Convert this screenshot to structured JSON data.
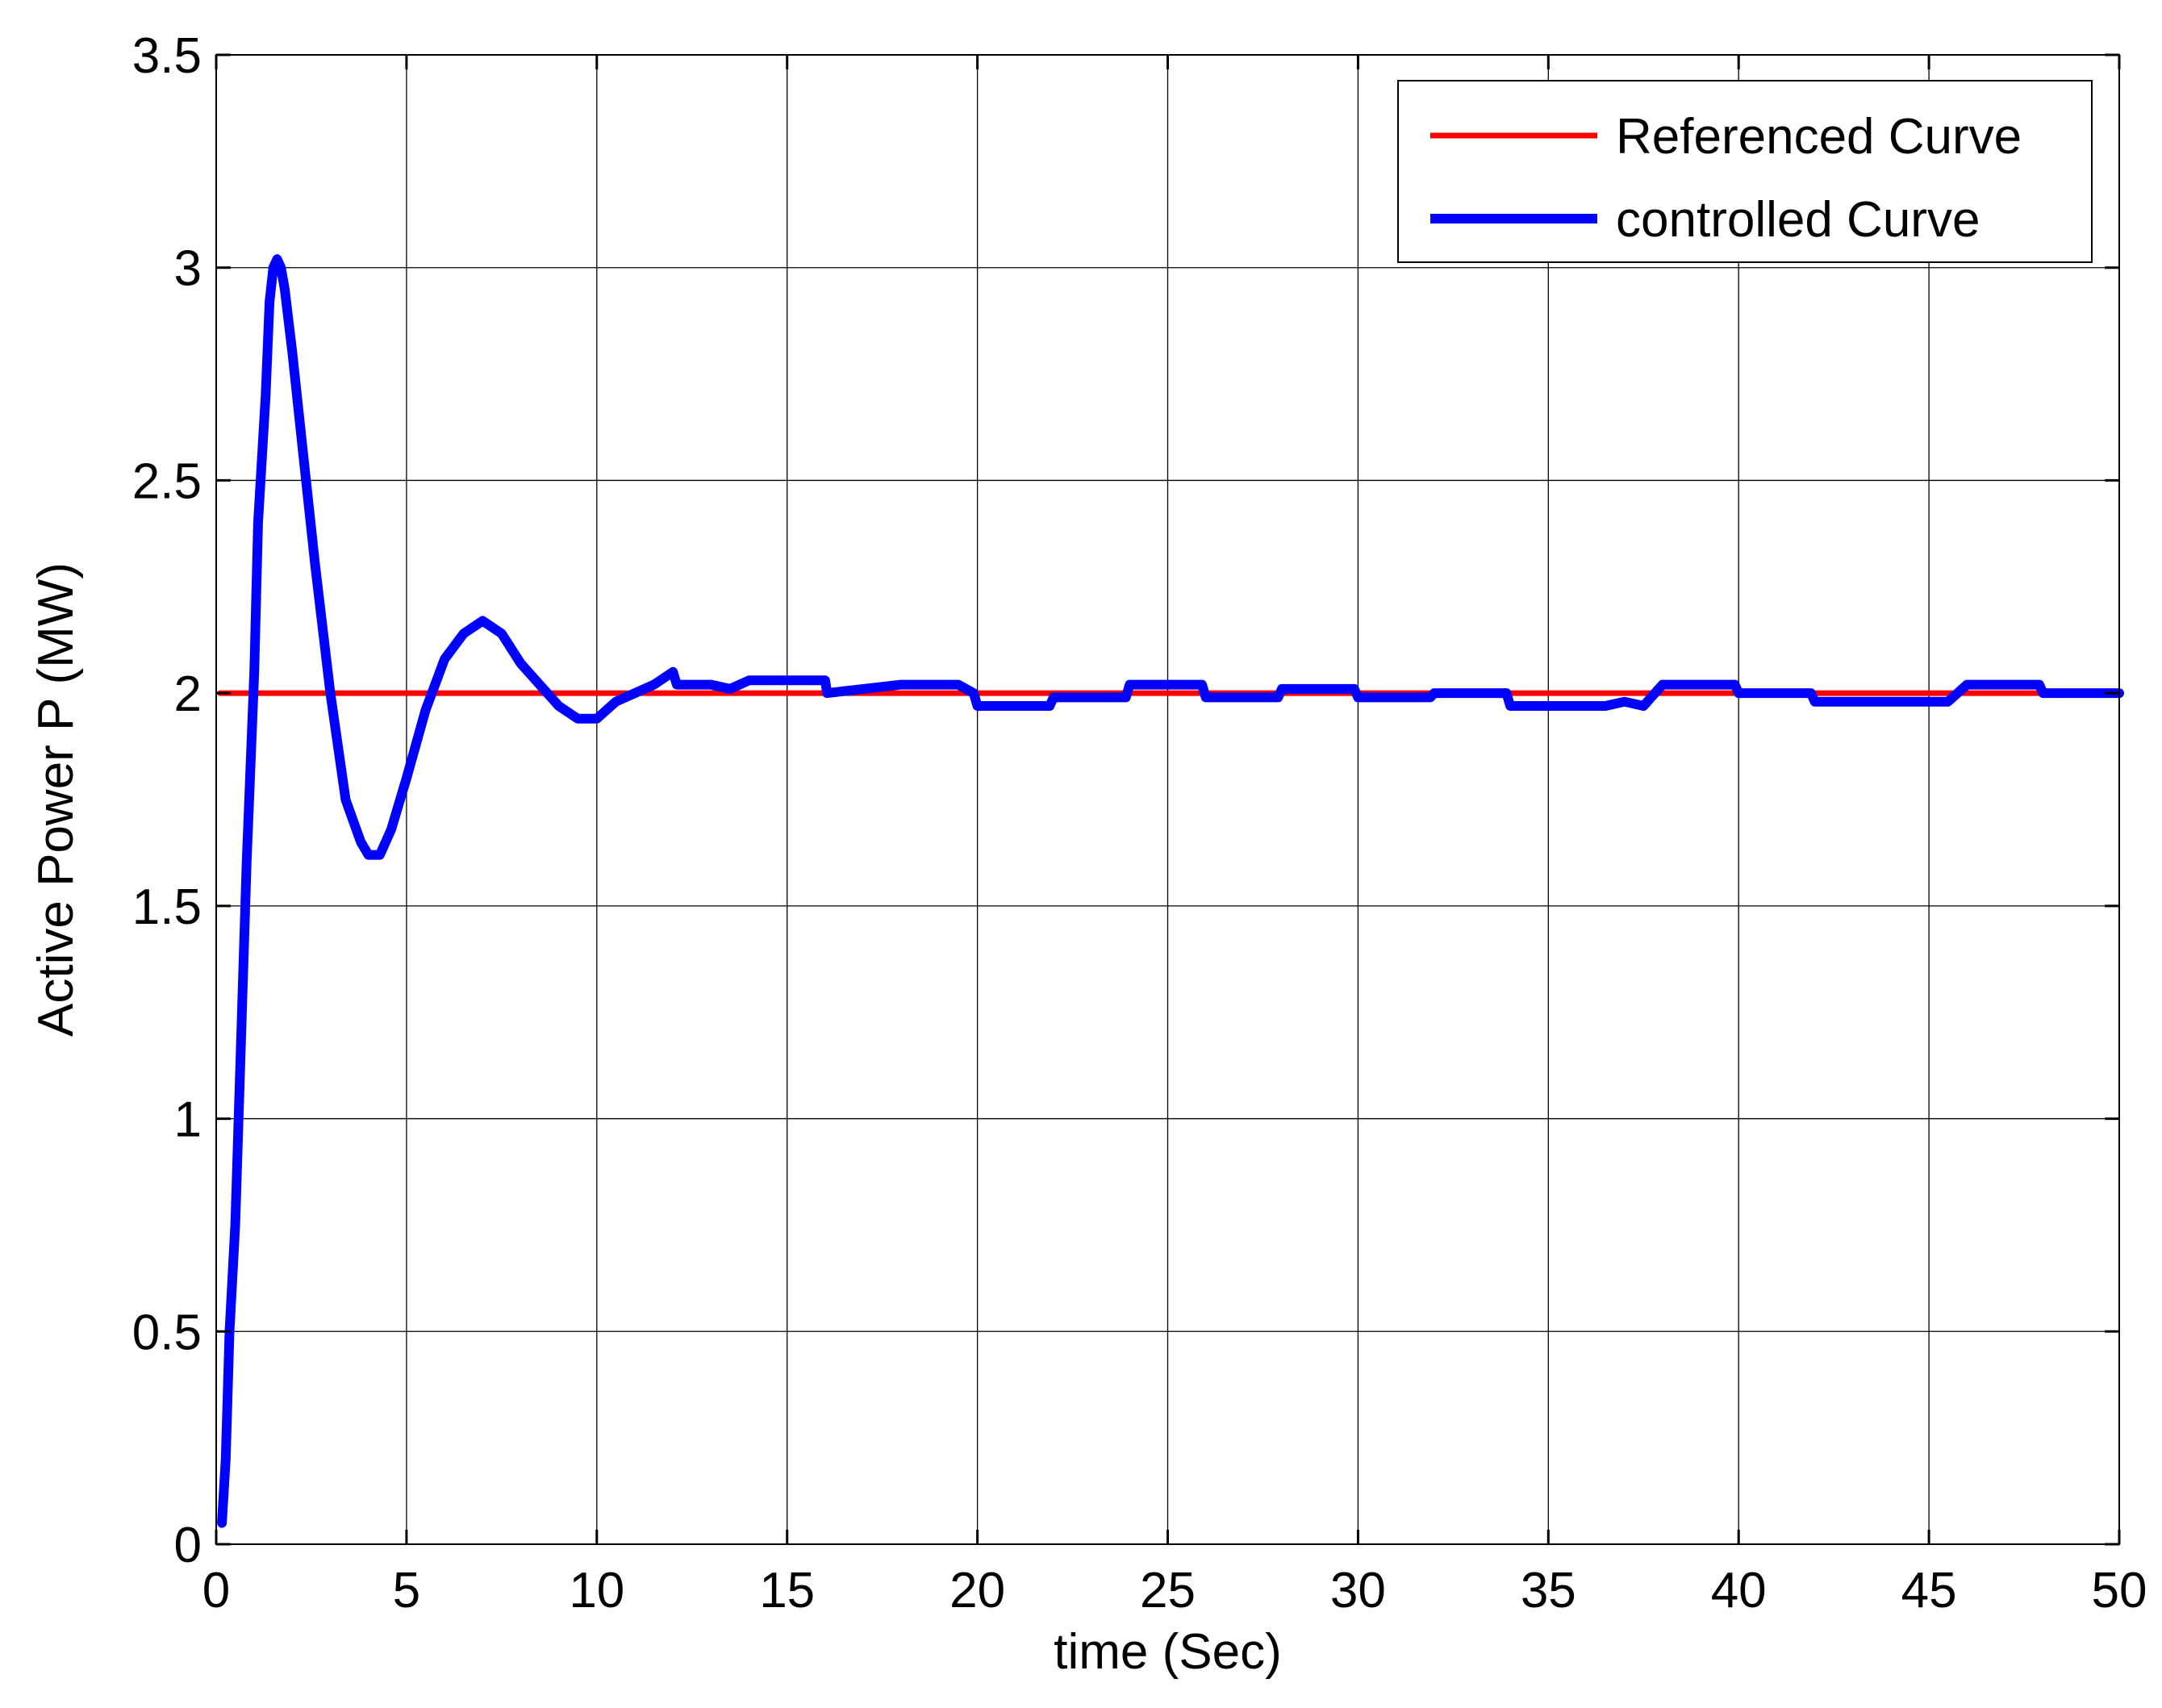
{
  "chart_data": {
    "type": "line",
    "xlabel": "time (Sec)",
    "ylabel": "Active Power P (MW)",
    "xlim": [
      0,
      50
    ],
    "ylim": [
      0,
      3.5
    ],
    "x_ticks": [
      0,
      5,
      10,
      15,
      20,
      25,
      30,
      35,
      40,
      45,
      50
    ],
    "y_ticks": [
      0,
      0.5,
      1,
      1.5,
      2,
      2.5,
      3,
      3.5
    ],
    "x_tick_labels": [
      "0",
      "5",
      "10",
      "15",
      "20",
      "25",
      "30",
      "35",
      "40",
      "45",
      "50"
    ],
    "y_tick_labels": [
      "0",
      "0.5",
      "1",
      "1.5",
      "2",
      "2.5",
      "3",
      "3.5"
    ],
    "grid": true,
    "legend_position": "top-right",
    "series": [
      {
        "name": "Referenced Curve",
        "color": "#ff0000",
        "x": [
          0.1,
          50
        ],
        "y": [
          2.0,
          2.0
        ]
      },
      {
        "name": "controlled Curve",
        "color": "#0000ff",
        "x": [
          0.15,
          0.25,
          0.35,
          0.5,
          0.8,
          1.0,
          1.1,
          1.3,
          1.4,
          1.5,
          1.6,
          1.7,
          1.8,
          2.0,
          2.3,
          2.6,
          3.0,
          3.4,
          3.6,
          3.8,
          4.0,
          4.3,
          4.6,
          5.0,
          5.5,
          6.0,
          6.5,
          7.0,
          7.5,
          8.0,
          8.5,
          9.0,
          9.5,
          10.0,
          10.5,
          11.0,
          11.5,
          12.0,
          12.1,
          13.0,
          13.5,
          14.0,
          14.5,
          15.0,
          16.0,
          16.05,
          17.0,
          18.0,
          19.0,
          19.5,
          19.9,
          20.0,
          21.9,
          22.0,
          23.9,
          24.0,
          25.9,
          26.0,
          27.9,
          28.0,
          29.9,
          30.0,
          31.9,
          32.0,
          33.9,
          34.0,
          36.5,
          37.0,
          37.5,
          38.0,
          39.9,
          40.0,
          41.9,
          42.0,
          45.5,
          46.0,
          47.9,
          48.0,
          50.0
        ],
        "y": [
          0.05,
          0.2,
          0.5,
          0.75,
          1.6,
          2.05,
          2.4,
          2.7,
          2.92,
          3.0,
          3.02,
          3.0,
          2.95,
          2.8,
          2.55,
          2.3,
          2.0,
          1.75,
          1.7,
          1.65,
          1.62,
          1.62,
          1.68,
          1.8,
          1.96,
          2.08,
          2.14,
          2.17,
          2.14,
          2.07,
          2.02,
          1.97,
          1.94,
          1.94,
          1.98,
          2.0,
          2.02,
          2.05,
          2.02,
          2.02,
          2.01,
          2.03,
          2.03,
          2.03,
          2.03,
          2.0,
          2.01,
          2.02,
          2.02,
          2.02,
          2.0,
          1.97,
          1.97,
          1.99,
          1.99,
          2.02,
          2.02,
          1.99,
          1.99,
          2.01,
          2.01,
          1.99,
          1.99,
          2.0,
          2.0,
          1.97,
          1.97,
          1.98,
          1.97,
          2.02,
          2.02,
          2.0,
          2.0,
          1.98,
          1.98,
          2.02,
          2.02,
          2.0,
          2.0
        ]
      }
    ]
  }
}
